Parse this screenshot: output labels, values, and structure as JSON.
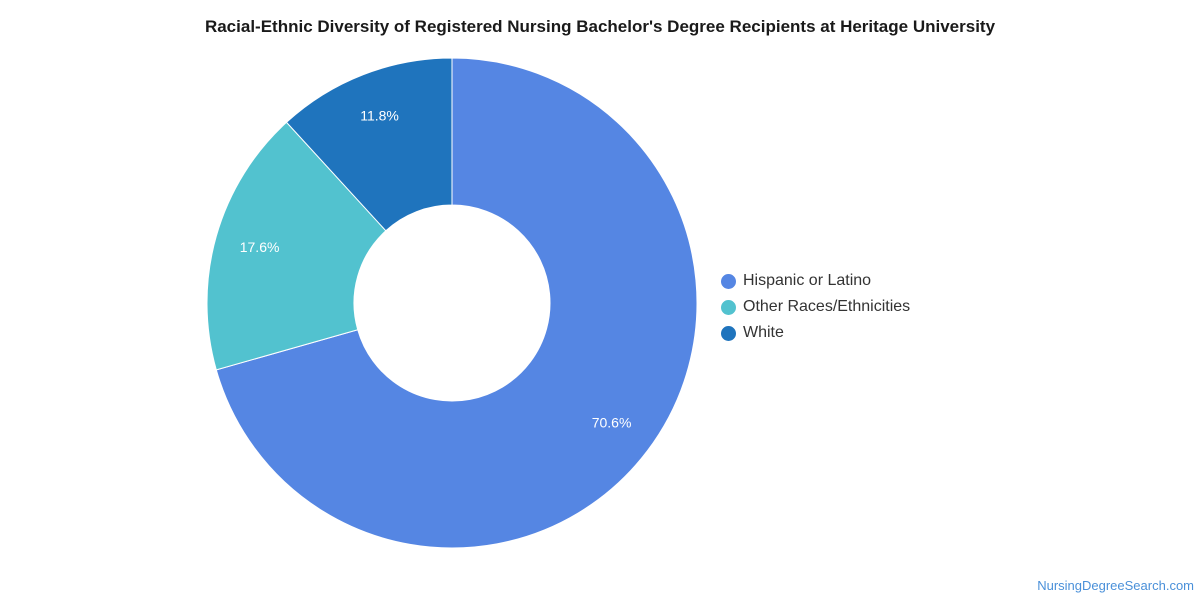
{
  "chart_data": {
    "type": "pie",
    "title": "Racial-Ethnic Diversity of Registered Nursing Bachelor's Degree Recipients at Heritage University",
    "categories": [
      "Hispanic or Latino",
      "Other Races/Ethnicities",
      "White"
    ],
    "values": [
      70.6,
      17.6,
      11.8
    ],
    "value_labels": [
      "70.6%",
      "17.6%",
      "11.8%"
    ],
    "colors": [
      "#5586e3",
      "#52c2cf",
      "#1f74bd"
    ],
    "donut": true,
    "legend": "right"
  },
  "credit": "NursingDegreeSearch.com"
}
